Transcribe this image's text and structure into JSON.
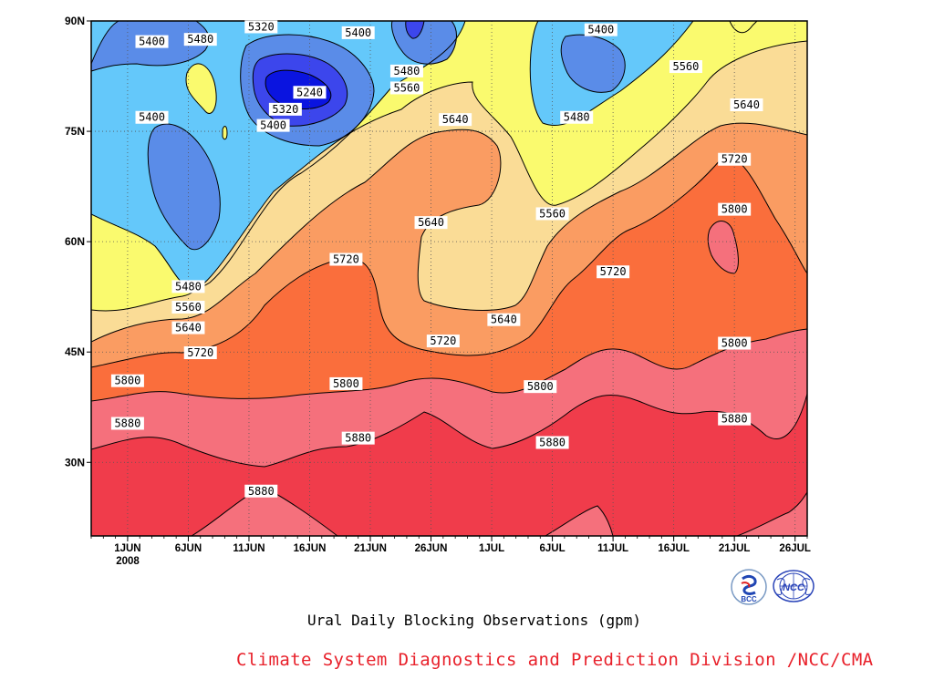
{
  "chart_data": {
    "type": "heatmap",
    "subtype": "filled-contour",
    "title": "Ural Daily Blocking Observations (gpm)",
    "ylabel": "",
    "xlabel": "",
    "y_ticks": [
      "90N",
      "75N",
      "60N",
      "45N",
      "30N"
    ],
    "y_tick_values": [
      90,
      75,
      60,
      45,
      30
    ],
    "ylim": [
      20,
      90
    ],
    "x_ticks": [
      "1JUN",
      "6JUN",
      "11JUN",
      "16JUN",
      "21JUN",
      "26JUN",
      "1JUL",
      "6JUL",
      "11JUL",
      "16JUL",
      "21JUL",
      "26JUL"
    ],
    "x_tick_dates": [
      "2008-06-01",
      "2008-06-06",
      "2008-06-11",
      "2008-06-16",
      "2008-06-21",
      "2008-06-26",
      "2008-07-01",
      "2008-07-06",
      "2008-07-11",
      "2008-07-16",
      "2008-07-21",
      "2008-07-26"
    ],
    "year_label": "2008",
    "xlim": [
      "2008-05-29",
      "2008-07-27"
    ],
    "contour_levels": [
      5240,
      5320,
      5400,
      5480,
      5560,
      5640,
      5720,
      5800,
      5880
    ],
    "fill_colors": [
      "#0a14e0",
      "#3c46ec",
      "#5a8ce8",
      "#64c8fa",
      "#fafa6e",
      "#fadc96",
      "#fa9c62",
      "#fa6e3c",
      "#f5707c",
      "#f03c4b"
    ],
    "contour_labels": [
      {
        "date": "2008-06-03",
        "lat": 87.2,
        "value": 5400
      },
      {
        "date": "2008-06-07",
        "lat": 87.5,
        "value": 5480
      },
      {
        "date": "2008-06-12",
        "lat": 89.2,
        "value": 5320
      },
      {
        "date": "2008-06-20",
        "lat": 88.4,
        "value": 5400
      },
      {
        "date": "2008-06-16",
        "lat": 80.3,
        "value": 5240
      },
      {
        "date": "2008-06-14",
        "lat": 78.0,
        "value": 5320
      },
      {
        "date": "2008-06-13",
        "lat": 75.8,
        "value": 5400
      },
      {
        "date": "2008-06-03",
        "lat": 76.9,
        "value": 5400
      },
      {
        "date": "2008-06-24",
        "lat": 83.2,
        "value": 5480
      },
      {
        "date": "2008-06-24",
        "lat": 80.9,
        "value": 5560
      },
      {
        "date": "2008-06-28",
        "lat": 76.6,
        "value": 5640
      },
      {
        "date": "2008-07-10",
        "lat": 88.8,
        "value": 5400
      },
      {
        "date": "2008-07-17",
        "lat": 83.8,
        "value": 5560
      },
      {
        "date": "2008-07-22",
        "lat": 78.6,
        "value": 5640
      },
      {
        "date": "2008-07-08",
        "lat": 76.9,
        "value": 5480
      },
      {
        "date": "2008-07-06",
        "lat": 63.8,
        "value": 5560
      },
      {
        "date": "2008-06-26",
        "lat": 62.6,
        "value": 5640
      },
      {
        "date": "2008-07-21",
        "lat": 71.2,
        "value": 5720
      },
      {
        "date": "2008-07-21",
        "lat": 64.4,
        "value": 5800
      },
      {
        "date": "2008-06-06",
        "lat": 53.9,
        "value": 5480
      },
      {
        "date": "2008-06-06",
        "lat": 51.1,
        "value": 5560
      },
      {
        "date": "2008-06-06",
        "lat": 48.3,
        "value": 5640
      },
      {
        "date": "2008-06-07",
        "lat": 44.9,
        "value": 5720
      },
      {
        "date": "2008-06-19",
        "lat": 57.6,
        "value": 5720
      },
      {
        "date": "2008-06-27",
        "lat": 46.5,
        "value": 5720
      },
      {
        "date": "2008-07-02",
        "lat": 49.4,
        "value": 5640
      },
      {
        "date": "2008-07-11",
        "lat": 55.9,
        "value": 5720
      },
      {
        "date": "2008-07-21",
        "lat": 46.2,
        "value": 5800
      },
      {
        "date": "2008-06-01",
        "lat": 41.1,
        "value": 5800
      },
      {
        "date": "2008-06-19",
        "lat": 40.7,
        "value": 5800
      },
      {
        "date": "2008-07-05",
        "lat": 40.3,
        "value": 5800
      },
      {
        "date": "2008-06-01",
        "lat": 35.3,
        "value": 5880
      },
      {
        "date": "2008-06-20",
        "lat": 33.3,
        "value": 5880
      },
      {
        "date": "2008-07-06",
        "lat": 32.7,
        "value": 5880
      },
      {
        "date": "2008-07-21",
        "lat": 35.9,
        "value": 5880
      },
      {
        "date": "2008-06-12",
        "lat": 26.1,
        "value": 5880
      }
    ],
    "grid": true,
    "legend": "none"
  },
  "footer": {
    "subtitle": "Ural Daily Blocking Observations (gpm)",
    "credit": "Climate System Diagnostics and Prediction Division /NCC/CMA",
    "logos": [
      {
        "name": "bcc-logo",
        "text": "BCC"
      },
      {
        "name": "ncc-logo",
        "text": "NCC"
      }
    ]
  }
}
